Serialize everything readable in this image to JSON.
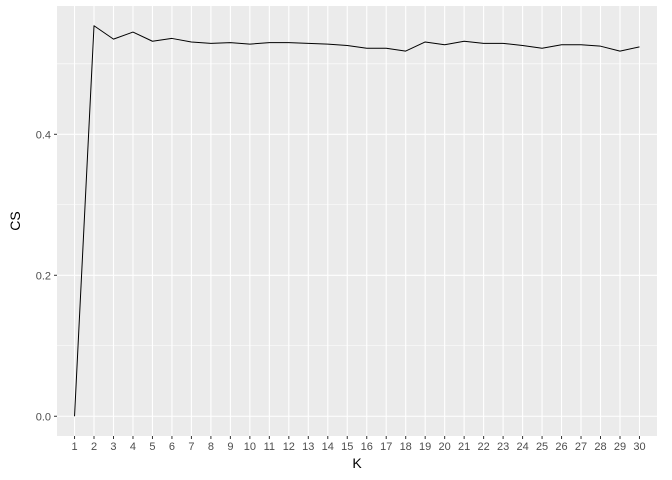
{
  "chart_data": {
    "type": "line",
    "title": "",
    "xlabel": "K",
    "ylabel": "CS",
    "x": [
      1,
      2,
      3,
      4,
      5,
      6,
      7,
      8,
      9,
      10,
      11,
      12,
      13,
      14,
      15,
      16,
      17,
      18,
      19,
      20,
      21,
      22,
      23,
      24,
      25,
      26,
      27,
      28,
      29,
      30
    ],
    "series": [
      {
        "values": [
          0.0,
          0.554,
          0.535,
          0.545,
          0.532,
          0.536,
          0.531,
          0.529,
          0.53,
          0.528,
          0.53,
          0.53,
          0.529,
          0.528,
          0.526,
          0.522,
          0.522,
          0.518,
          0.531,
          0.527,
          0.532,
          0.529,
          0.529,
          0.526,
          0.522,
          0.527,
          0.527,
          0.525,
          0.518,
          0.524
        ]
      }
    ],
    "xlim": [
      0.1,
      30.9
    ],
    "ylim": [
      -0.028,
      0.582
    ],
    "yticks": [
      0.0,
      0.2,
      0.4
    ],
    "ytick_labels": [
      "0.0",
      "0.2",
      "0.4"
    ],
    "xtick_labels": [
      "1",
      "2",
      "3",
      "4",
      "5",
      "6",
      "7",
      "8",
      "9",
      "10",
      "11",
      "12",
      "13",
      "14",
      "15",
      "16",
      "17",
      "18",
      "19",
      "20",
      "21",
      "22",
      "23",
      "24",
      "25",
      "26",
      "27",
      "28",
      "29",
      "30"
    ],
    "grid": true,
    "panel_color": "#EBEBEB",
    "grid_color": "#FFFFFF",
    "line_color": "#000000",
    "tick_color": "#333333"
  }
}
